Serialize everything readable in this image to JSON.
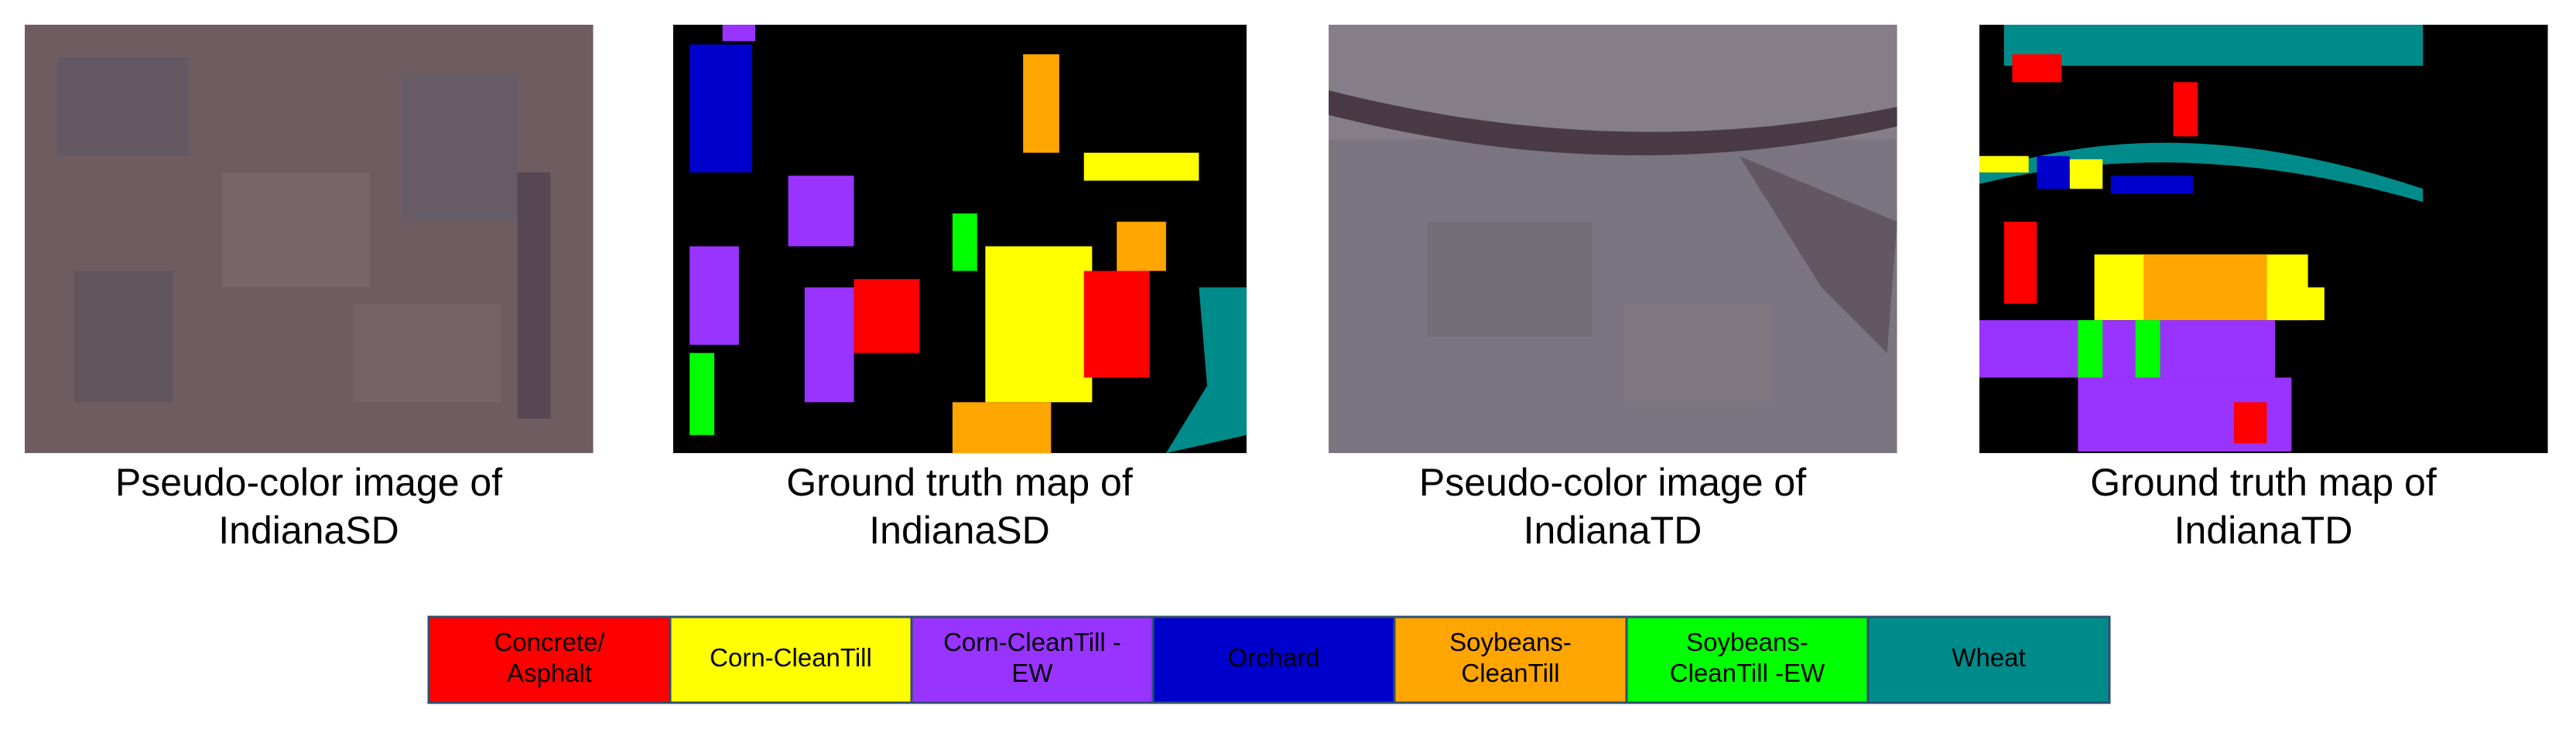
{
  "panels": [
    {
      "caption": [
        "Pseudo-color image of",
        "IndianaSD"
      ]
    },
    {
      "caption": [
        "Ground truth map of",
        "IndianaSD"
      ]
    },
    {
      "caption": [
        "Pseudo-color image of",
        "IndianaTD"
      ]
    },
    {
      "caption": [
        "Ground truth map of",
        "IndianaTD"
      ]
    }
  ],
  "legend": [
    {
      "label": [
        "Concrete/",
        "Asphalt"
      ],
      "color": "#ff0000"
    },
    {
      "label": [
        "Corn-CleanTill"
      ],
      "color": "#ffff00"
    },
    {
      "label": [
        "Corn-CleanTill -",
        "EW"
      ],
      "color": "#9933ff"
    },
    {
      "label": [
        "Orchard"
      ],
      "color": "#0000cc"
    },
    {
      "label": [
        "Soybeans-",
        "CleanTill"
      ],
      "color": "#ffa500"
    },
    {
      "label": [
        "Soybeans-",
        "CleanTill -EW"
      ],
      "color": "#00ff00"
    },
    {
      "label": [
        "Wheat"
      ],
      "color": "#008b8b"
    }
  ]
}
